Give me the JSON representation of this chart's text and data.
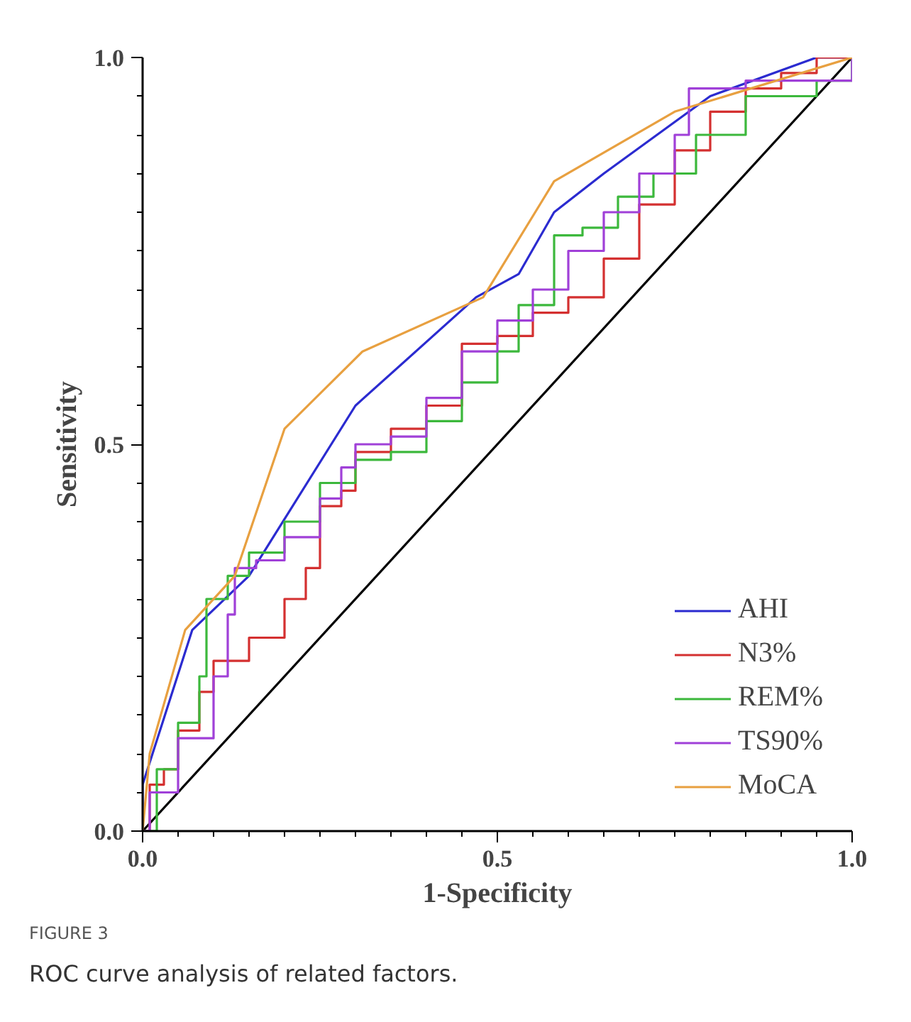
{
  "chart_data": {
    "type": "step",
    "xlabel": "1-Specificity",
    "ylabel": "Sensitivity",
    "xlim": [
      0,
      1
    ],
    "ylim": [
      0,
      1
    ],
    "xticks": [
      {
        "value": 0,
        "label": "0.0"
      },
      {
        "value": 0.5,
        "label": "0.5"
      },
      {
        "value": 1,
        "label": "1.0"
      }
    ],
    "yticks": [
      {
        "value": 0,
        "label": "0.0"
      },
      {
        "value": 0.5,
        "label": "0.5"
      },
      {
        "value": 1,
        "label": "1.0"
      }
    ],
    "grid": false,
    "legend": "bottom right",
    "line_style": "solid",
    "marker": "none",
    "annotations": [
      "FIGURE 3",
      "ROC curve analysis of related factors."
    ],
    "series": [
      {
        "type": "line",
        "color": "#000000",
        "x": [
          0,
          1
        ],
        "values": [
          0,
          1
        ]
      },
      {
        "name": "AHI",
        "type": "line",
        "color": "#2b2bd0",
        "x": [
          0,
          0,
          0.07,
          0.15,
          0.3,
          0.47,
          0.53,
          0.58,
          0.65,
          0.8,
          0.95,
          1
        ],
        "values": [
          0,
          0.06,
          0.26,
          0.33,
          0.55,
          0.69,
          0.72,
          0.8,
          0.85,
          0.95,
          1,
          1
        ]
      },
      {
        "name": "N3%",
        "color": "#d43030",
        "x": [
          0,
          0.01,
          0.01,
          0.03,
          0.05,
          0.08,
          0.1,
          0.15,
          0.2,
          0.23,
          0.25,
          0.28,
          0.3,
          0.35,
          0.4,
          0.45,
          0.5,
          0.55,
          0.6,
          0.65,
          0.7,
          0.75,
          0.8,
          0.85,
          0.9,
          0.95,
          1
        ],
        "values": [
          0,
          0,
          0.06,
          0.08,
          0.13,
          0.18,
          0.22,
          0.25,
          0.3,
          0.34,
          0.42,
          0.44,
          0.49,
          0.52,
          0.55,
          0.63,
          0.64,
          0.67,
          0.69,
          0.74,
          0.81,
          0.88,
          0.93,
          0.96,
          0.98,
          1,
          1
        ]
      },
      {
        "name": "REM%",
        "color": "#3cb83c",
        "x": [
          0,
          0.02,
          0.05,
          0.08,
          0.09,
          0.12,
          0.15,
          0.2,
          0.25,
          0.3,
          0.35,
          0.4,
          0.45,
          0.5,
          0.53,
          0.58,
          0.62,
          0.67,
          0.72,
          0.78,
          0.85,
          0.95,
          1
        ],
        "values": [
          0,
          0.08,
          0.14,
          0.2,
          0.3,
          0.33,
          0.36,
          0.4,
          0.45,
          0.48,
          0.49,
          0.53,
          0.58,
          0.62,
          0.68,
          0.77,
          0.78,
          0.82,
          0.85,
          0.9,
          0.95,
          0.97,
          1
        ]
      },
      {
        "name": "TS90%",
        "color": "#a040d8",
        "x": [
          0,
          0.01,
          0.05,
          0.1,
          0.12,
          0.13,
          0.16,
          0.2,
          0.25,
          0.28,
          0.3,
          0.35,
          0.4,
          0.45,
          0.5,
          0.55,
          0.6,
          0.65,
          0.7,
          0.75,
          0.77,
          0.85,
          0.97,
          1
        ],
        "values": [
          0,
          0.05,
          0.12,
          0.2,
          0.28,
          0.34,
          0.35,
          0.38,
          0.43,
          0.47,
          0.5,
          0.51,
          0.56,
          0.62,
          0.66,
          0.7,
          0.75,
          0.8,
          0.85,
          0.9,
          0.96,
          0.97,
          0.97,
          1
        ]
      },
      {
        "name": "MoCA",
        "type": "line",
        "color": "#e8a040",
        "x": [
          0,
          0.01,
          0.06,
          0.13,
          0.2,
          0.31,
          0.48,
          0.58,
          0.75,
          1
        ],
        "values": [
          0,
          0.1,
          0.26,
          0.33,
          0.52,
          0.62,
          0.69,
          0.84,
          0.93,
          1
        ]
      }
    ]
  }
}
